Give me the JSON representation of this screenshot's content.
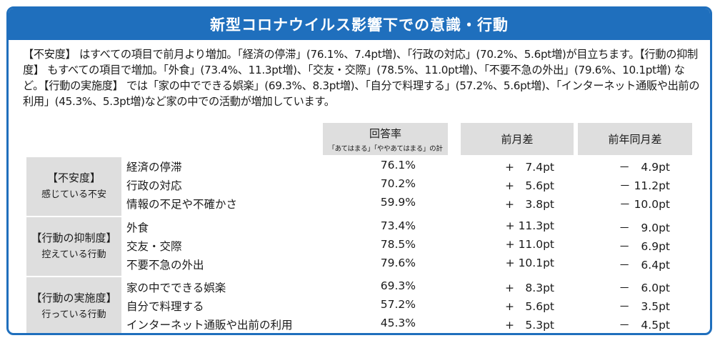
{
  "title": "新型コロナウイルス影響下での意識・行動",
  "summary": "【不安度】 はすべての項目で前月より増加。「経済の停滞」(76.1%、7.4pt増)、「行政の対応」(70.2%、5.6pt増)が目立ちます。【行動の抑制度】 もすべての項目で増加。「外食」(73.4%、11.3pt増)、「交友・交際」(78.5%、11.0pt増)、「不要不急の外出」(79.6%、10.1pt増) など。【行動の実施度】 では「家の中でできる娯楽」(69.3%、8.3pt増)、「自分で料理する」(57.2%、5.6pt増)、「インターネット通販や出前の利用」(45.3%、5.3pt増)など家の中での活動が増加しています。",
  "headers": {
    "rate": "回答率",
    "rate_note": "「あてはまる」「ややあてはまる」の計",
    "mom": "前月差",
    "yoy": "前年同月差"
  },
  "groups": [
    {
      "title": "【不安度】",
      "subtitle": "感じている不安",
      "rows": [
        {
          "item": "経済の停滞",
          "rate": "76.1%",
          "mom": "+　7.4pt",
          "yoy": "－　4.9pt"
        },
        {
          "item": "行政の対応",
          "rate": "70.2%",
          "mom": "+　5.6pt",
          "yoy": "－ 11.2pt"
        },
        {
          "item": "情報の不足や不確かさ",
          "rate": "59.9%",
          "mom": "+　3.8pt",
          "yoy": "－ 10.0pt"
        }
      ]
    },
    {
      "title": "【行動の抑制度】",
      "subtitle": "控えている行動",
      "rows": [
        {
          "item": "外食",
          "rate": "73.4%",
          "mom": "+ 11.3pt",
          "yoy": "－　9.0pt"
        },
        {
          "item": "交友・交際",
          "rate": "78.5%",
          "mom": "+ 11.0pt",
          "yoy": "－　6.9pt"
        },
        {
          "item": "不要不急の外出",
          "rate": "79.6%",
          "mom": "+ 10.1pt",
          "yoy": "－　6.4pt"
        }
      ]
    },
    {
      "title": "【行動の実施度】",
      "subtitle": "行っている行動",
      "rows": [
        {
          "item": "家の中でできる娯楽",
          "rate": "69.3%",
          "mom": "+　8.3pt",
          "yoy": "－　6.0pt"
        },
        {
          "item": "自分で料理する",
          "rate": "57.2%",
          "mom": "+　5.6pt",
          "yoy": "－　3.5pt"
        },
        {
          "item": "インターネット通販や出前の利用",
          "rate": "45.3%",
          "mom": "+　5.3pt",
          "yoy": "－　4.5pt"
        }
      ]
    }
  ]
}
